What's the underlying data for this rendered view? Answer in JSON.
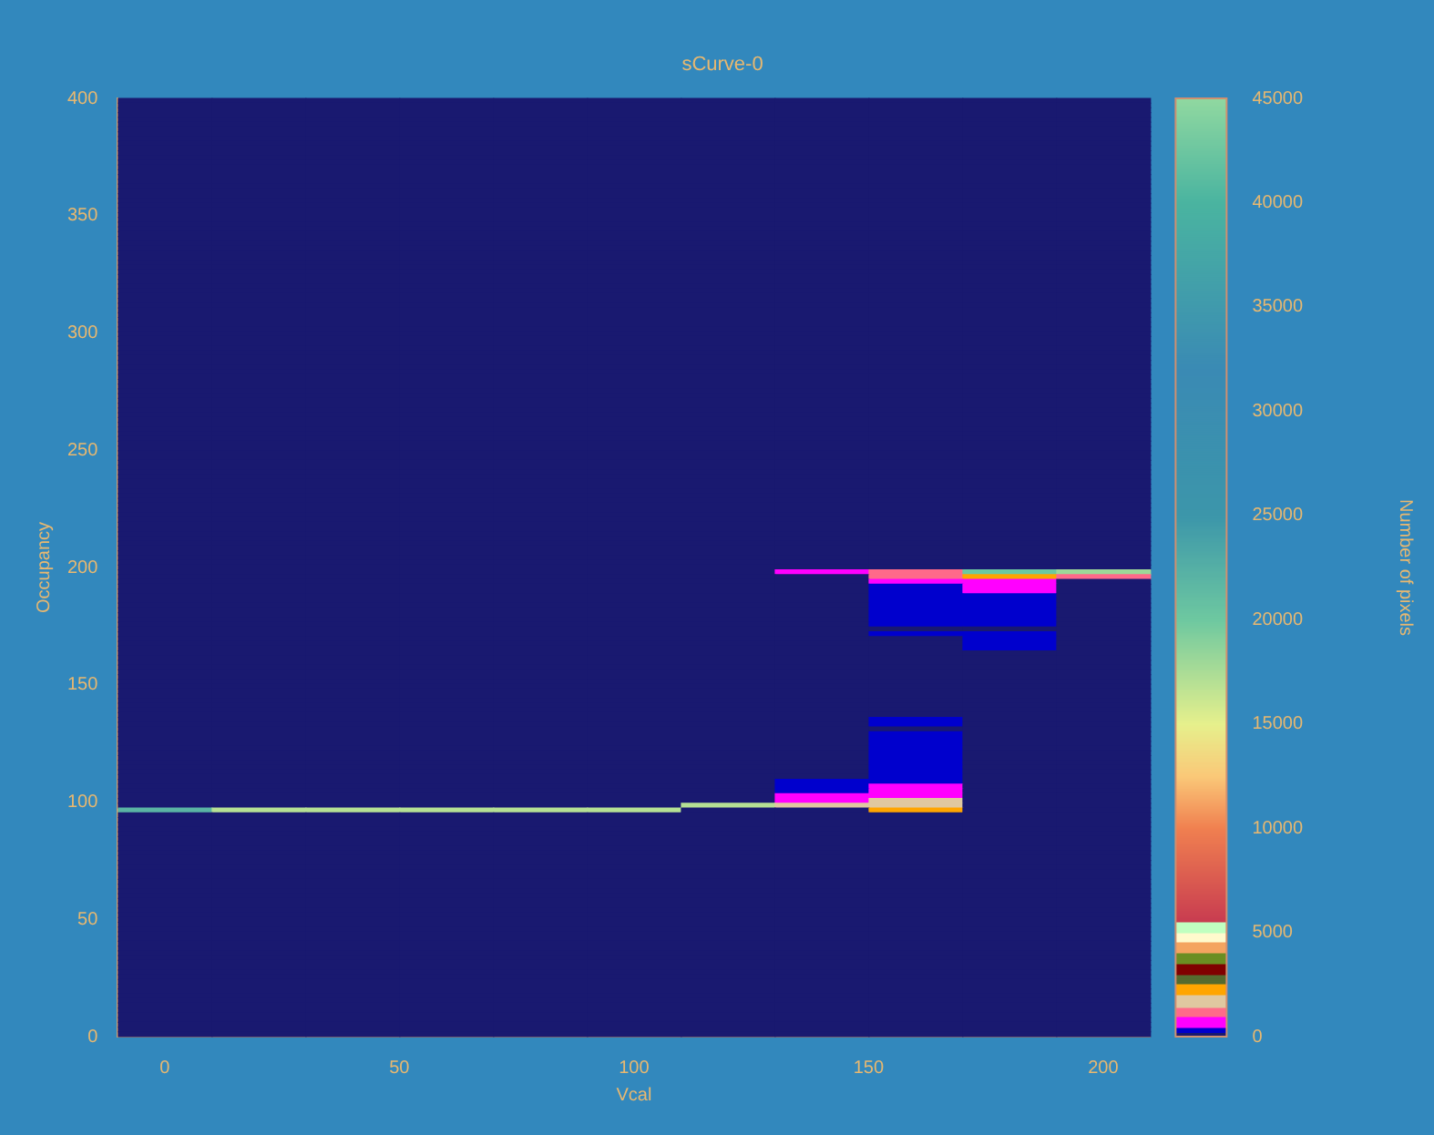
{
  "chart_data": {
    "type": "heatmap",
    "title": "sCurve-0",
    "xlabel": "Vcal",
    "ylabel": "Occupancy",
    "clabel": "Number of pixels",
    "xlim": [
      -10,
      210
    ],
    "xticks": [
      0,
      50,
      100,
      150,
      200
    ],
    "ylim": [
      0,
      400
    ],
    "yticks": [
      0,
      50,
      100,
      150,
      200,
      250,
      300,
      350,
      400
    ],
    "clim": [
      0,
      45000
    ],
    "cticks": [
      0,
      5000,
      10000,
      15000,
      20000,
      25000,
      30000,
      35000,
      40000,
      45000
    ],
    "grid": false,
    "cells": [
      [
        0,
        0,
        0,
        0,
        0,
        0,
        0,
        0,
        0,
        0,
        0
      ],
      [
        0,
        0,
        0,
        0,
        0,
        0,
        0,
        0,
        0,
        0,
        0
      ],
      [
        0,
        0,
        0,
        0,
        0,
        0,
        0,
        0,
        0,
        0,
        0
      ],
      [
        0,
        0,
        0,
        0,
        0,
        0,
        0,
        0,
        0,
        0,
        0
      ],
      [
        0,
        0,
        0,
        0,
        0,
        0,
        0,
        0,
        0,
        0,
        0
      ],
      [
        0,
        0,
        0,
        0,
        0,
        0,
        0,
        0,
        0,
        0,
        0
      ],
      [
        0,
        0,
        0,
        0,
        0,
        0,
        0,
        0,
        0,
        0,
        0
      ],
      [
        0,
        0,
        0,
        0,
        0,
        0,
        0,
        0,
        0,
        0,
        0
      ],
      [
        0,
        0,
        0,
        0,
        0,
        0,
        0,
        0,
        0,
        0,
        0
      ],
      [
        0,
        0,
        0,
        0,
        0,
        0,
        0,
        0,
        0,
        0,
        0
      ],
      [
        0,
        0,
        0,
        0,
        0,
        0,
        0,
        0,
        0,
        0,
        0
      ],
      [
        0,
        0,
        0,
        0,
        0,
        0,
        0,
        0,
        0,
        0,
        0
      ],
      [
        0,
        0,
        0,
        0,
        0,
        0,
        0,
        0,
        0,
        0,
        0
      ],
      [
        0,
        0,
        0,
        0,
        0,
        0,
        0,
        0,
        0,
        0,
        0
      ],
      [
        0,
        0,
        0,
        0,
        0,
        0,
        0,
        0,
        0,
        0,
        0
      ],
      [
        0,
        0,
        0,
        0,
        0,
        0,
        0,
        0,
        0,
        0,
        0
      ],
      [
        0,
        0,
        0,
        0,
        0,
        0,
        0,
        0,
        0,
        0,
        0
      ],
      [
        0,
        0,
        0,
        0,
        0,
        0,
        0,
        0,
        0,
        0,
        0
      ],
      [
        0,
        0,
        0,
        0,
        0,
        0,
        0,
        0,
        0,
        0,
        0
      ],
      [
        0,
        0,
        0,
        0,
        0,
        0,
        0,
        0,
        0,
        0,
        0
      ],
      [
        0,
        0,
        0,
        0,
        0,
        0,
        0,
        0,
        0,
        0,
        0
      ],
      [
        0,
        0,
        0,
        0,
        0,
        0,
        0,
        0,
        0,
        0,
        0
      ],
      [
        0,
        0,
        0,
        0,
        0,
        0,
        0,
        0,
        0,
        0,
        0
      ],
      [
        0,
        0,
        0,
        0,
        0,
        0,
        0,
        0,
        0,
        0,
        0
      ],
      [
        0,
        0,
        0,
        0,
        0,
        0,
        0,
        0,
        0,
        0,
        0
      ],
      [
        0,
        0,
        0,
        0,
        0,
        0,
        0,
        0,
        0,
        0,
        0
      ],
      [
        0,
        0,
        0,
        0,
        0,
        0,
        0,
        0,
        0,
        0,
        0
      ],
      [
        0,
        0,
        0,
        0,
        0,
        0,
        0,
        0,
        0,
        0,
        0
      ],
      [
        0,
        0,
        0,
        0,
        0,
        0,
        0,
        0,
        0,
        0,
        0
      ],
      [
        0,
        0,
        0,
        0,
        0,
        0,
        0,
        0,
        0,
        0,
        0
      ],
      [
        0,
        0,
        0,
        0,
        0,
        0,
        0,
        0,
        0,
        0,
        0
      ],
      [
        0,
        0,
        0,
        0,
        0,
        0,
        0,
        0,
        0,
        0,
        0
      ],
      [
        0,
        0,
        0,
        0,
        0,
        0,
        0,
        0,
        0,
        0,
        0
      ],
      [
        0,
        0,
        0,
        0,
        0,
        0,
        0,
        0,
        0,
        0,
        0
      ],
      [
        0,
        0,
        0,
        0,
        0,
        0,
        0,
        0,
        0,
        0,
        0
      ],
      [
        0,
        0,
        0,
        0,
        0,
        0,
        0,
        0,
        0,
        0,
        0
      ],
      [
        0,
        0,
        0,
        0,
        0,
        0,
        0,
        0,
        0,
        0,
        0
      ],
      [
        0,
        0,
        0,
        0,
        0,
        0,
        0,
        0,
        0,
        0,
        0
      ],
      [
        0,
        0,
        0,
        0,
        0,
        0,
        0,
        0,
        0,
        0,
        0
      ],
      [
        0,
        0,
        0,
        0,
        0,
        0,
        0,
        0,
        0,
        0,
        0
      ],
      [
        0,
        0,
        0,
        0,
        0,
        0,
        0,
        0,
        0,
        0,
        0
      ],
      [
        0,
        0,
        0,
        0,
        0,
        0,
        0,
        0,
        0,
        0,
        0
      ],
      [
        0,
        0,
        0,
        0,
        0,
        0,
        0,
        0,
        0,
        0,
        0
      ],
      [
        0,
        0,
        0,
        0,
        0,
        0,
        0,
        0,
        0,
        0,
        0
      ],
      [
        0,
        0,
        0,
        0,
        0,
        0,
        0,
        0,
        0,
        0,
        0
      ],
      [
        0,
        0,
        0,
        0,
        0,
        0,
        0,
        0,
        0,
        0,
        0
      ],
      [
        0,
        0,
        0,
        0,
        0,
        0,
        0,
        0,
        0,
        0,
        0
      ],
      [
        0,
        0,
        0,
        0,
        0,
        0,
        0,
        0,
        0,
        0,
        0
      ],
      [
        0,
        0,
        0,
        0,
        0,
        0,
        0,
        0,
        0,
        0,
        0
      ],
      [
        0,
        0,
        0,
        0,
        0,
        0,
        0,
        0,
        0,
        0,
        0
      ],
      [
        0,
        0,
        0,
        0,
        0,
        0,
        0,
        0,
        0,
        0,
        0
      ],
      [
        0,
        0,
        0,
        0,
        0,
        0,
        0,
        0,
        0,
        0,
        0
      ],
      [
        0,
        0,
        0,
        0,
        0,
        0,
        0,
        0,
        0,
        0,
        0
      ],
      [
        0,
        0,
        0,
        0,
        0,
        0,
        0,
        0,
        0,
        0,
        0
      ],
      [
        0,
        0,
        0,
        0,
        0,
        0,
        0,
        0,
        0,
        0,
        0
      ],
      [
        0,
        0,
        0,
        0,
        0,
        0,
        0,
        0,
        0,
        0,
        0
      ],
      [
        0,
        0,
        0,
        0,
        0,
        0,
        0,
        0,
        0,
        0,
        0
      ],
      [
        0,
        0,
        0,
        0,
        0,
        0,
        0,
        0,
        0,
        0,
        0
      ],
      [
        0,
        0,
        0,
        0,
        0,
        0,
        0,
        0,
        0,
        0,
        0
      ],
      [
        0,
        0,
        0,
        0,
        0,
        0,
        0,
        0,
        0,
        0,
        0
      ],
      [
        0,
        0,
        0,
        0,
        0,
        0,
        0,
        0,
        0,
        0,
        0
      ],
      [
        0,
        0,
        0,
        0,
        0,
        0,
        0,
        0,
        0,
        0,
        0
      ],
      [
        0,
        0,
        0,
        0,
        0,
        0,
        0,
        0,
        0,
        0,
        0
      ],
      [
        0,
        0,
        0,
        0,
        0,
        0,
        0,
        0,
        0,
        0,
        0
      ],
      [
        0,
        0,
        0,
        0,
        0,
        0,
        0,
        0,
        0,
        0,
        0
      ],
      [
        0,
        0,
        0,
        0,
        0,
        0,
        0,
        0,
        0,
        0,
        0
      ],
      [
        0,
        0,
        0,
        0,
        0,
        0,
        0,
        0,
        0,
        0,
        0
      ],
      [
        0,
        0,
        0,
        0,
        0,
        0,
        0,
        0,
        0,
        0,
        0
      ],
      [
        0,
        0,
        0,
        0,
        0,
        0,
        0,
        0,
        0,
        0,
        0
      ],
      [
        0,
        0,
        0,
        0,
        0,
        0,
        0,
        0,
        0,
        0,
        0
      ],
      [
        0,
        0,
        0,
        0,
        0,
        0,
        0,
        0,
        0,
        0,
        0
      ],
      [
        0,
        0,
        0,
        0,
        0,
        0,
        0,
        0,
        0,
        0,
        0
      ],
      [
        0,
        0,
        0,
        0,
        0,
        0,
        0,
        0,
        0,
        0,
        0
      ],
      [
        0,
        0,
        0,
        0,
        0,
        0,
        0,
        0,
        0,
        0,
        0
      ],
      [
        0,
        0,
        0,
        0,
        0,
        0,
        0,
        0,
        0,
        0,
        0
      ],
      [
        0,
        0,
        0,
        0,
        0,
        0,
        0,
        0,
        0,
        0,
        0
      ],
      [
        0,
        0,
        0,
        0,
        0,
        0,
        0,
        0,
        0,
        0,
        0
      ],
      [
        0,
        0,
        0,
        0,
        0,
        0,
        0,
        0,
        0,
        0,
        0
      ],
      [
        0,
        0,
        0,
        0,
        0,
        0,
        0,
        0,
        0,
        0,
        0
      ],
      [
        0,
        0,
        0,
        0,
        0,
        0,
        0,
        0,
        0,
        0,
        0
      ],
      [
        0,
        0,
        0,
        0,
        0,
        0,
        0,
        0,
        0,
        0,
        0
      ],
      [
        0,
        0,
        0,
        0,
        0,
        0,
        0,
        0,
        0,
        0,
        0
      ],
      [
        0,
        0,
        0,
        0,
        0,
        0,
        0,
        0,
        0,
        0,
        0
      ],
      [
        0,
        0,
        0,
        0,
        0,
        0,
        0,
        0,
        0,
        0,
        0
      ],
      [
        0,
        0,
        0,
        0,
        0,
        0,
        0,
        0,
        0,
        0,
        0
      ],
      [
        0,
        0,
        0,
        0,
        0,
        0,
        0,
        0,
        0,
        0,
        0
      ],
      [
        0,
        0,
        0,
        0,
        0,
        0,
        0,
        0,
        0,
        0,
        0
      ],
      [
        0,
        0,
        0,
        0,
        0,
        0,
        0,
        0,
        0,
        0,
        0
      ],
      [
        0,
        0,
        0,
        0,
        0,
        0,
        0,
        0,
        0,
        0,
        0
      ],
      [
        0,
        0,
        0,
        0,
        0,
        0,
        0,
        0,
        0,
        0,
        0
      ],
      [
        0,
        0,
        0,
        0,
        0,
        0,
        0,
        0,
        0,
        0,
        0
      ],
      [
        0,
        0,
        0,
        0,
        0,
        0,
        0,
        0,
        0,
        0,
        0
      ],
      [
        0,
        0,
        0,
        0,
        0,
        0,
        0,
        0,
        0,
        0,
        0
      ],
      [
        0,
        0,
        0,
        0,
        0,
        0,
        0,
        0,
        0,
        0,
        0
      ],
      [
        0,
        0,
        0,
        0,
        0,
        0,
        0,
        0,
        0,
        0,
        0
      ],
      [
        0,
        0,
        0,
        0,
        0,
        0,
        0,
        0,
        0,
        0,
        0
      ],
      [
        0,
        0,
        0,
        0,
        0,
        0,
        0,
        0,
        0,
        0,
        0
      ],
      [
        0,
        0,
        0,
        0,
        0,
        0,
        0,
        0,
        0,
        0,
        0
      ],
      [
        0,
        0,
        0,
        0,
        0,
        0,
        0,
        0,
        0,
        0,
        0
      ],
      [
        0,
        0,
        0,
        0,
        0,
        0,
        0,
        700,
        1200,
        20000,
        18000
      ],
      [
        0,
        0,
        0,
        0,
        0,
        0,
        0,
        0,
        1200,
        2200,
        1200
      ],
      [
        0,
        0,
        0,
        0,
        0,
        0,
        0,
        0,
        800,
        800,
        0
      ],
      [
        0,
        0,
        0,
        0,
        0,
        0,
        0,
        0,
        200,
        800,
        0
      ],
      [
        0,
        0,
        0,
        0,
        0,
        0,
        0,
        0,
        200,
        800,
        0
      ],
      [
        0,
        0,
        0,
        0,
        0,
        0,
        0,
        0,
        200,
        200,
        0
      ],
      [
        0,
        0,
        0,
        0,
        0,
        0,
        0,
        0,
        200,
        200,
        0
      ],
      [
        0,
        0,
        0,
        0,
        0,
        0,
        0,
        0,
        200,
        200,
        0
      ],
      [
        0,
        0,
        0,
        0,
        0,
        0,
        0,
        0,
        200,
        200,
        0
      ],
      [
        0,
        0,
        0,
        0,
        0,
        0,
        0,
        0,
        200,
        200,
        0
      ],
      [
        0,
        0,
        0,
        0,
        0,
        0,
        0,
        0,
        200,
        200,
        0
      ],
      [
        0,
        0,
        0,
        0,
        0,
        0,
        0,
        0,
        200,
        200,
        0
      ],
      [
        0,
        0,
        0,
        0,
        0,
        0,
        0,
        0,
        0,
        0,
        0
      ],
      [
        0,
        0,
        0,
        0,
        0,
        0,
        0,
        0,
        200,
        200,
        0
      ],
      [
        0,
        0,
        0,
        0,
        0,
        0,
        0,
        0,
        0,
        200,
        0
      ],
      [
        0,
        0,
        0,
        0,
        0,
        0,
        0,
        0,
        0,
        200,
        0
      ],
      [
        0,
        0,
        0,
        0,
        0,
        0,
        0,
        0,
        0,
        200,
        0
      ],
      [
        0,
        0,
        0,
        0,
        0,
        0,
        0,
        0,
        0,
        0,
        0
      ],
      [
        0,
        0,
        0,
        0,
        0,
        0,
        0,
        0,
        0,
        0,
        0
      ],
      [
        0,
        0,
        0,
        0,
        0,
        0,
        0,
        0,
        0,
        0,
        0
      ],
      [
        0,
        0,
        0,
        0,
        0,
        0,
        0,
        0,
        0,
        0,
        0
      ],
      [
        0,
        0,
        0,
        0,
        0,
        0,
        0,
        0,
        0,
        0,
        0
      ],
      [
        0,
        0,
        0,
        0,
        0,
        0,
        0,
        0,
        0,
        0,
        0
      ],
      [
        0,
        0,
        0,
        0,
        0,
        0,
        0,
        0,
        0,
        0,
        0
      ],
      [
        0,
        0,
        0,
        0,
        0,
        0,
        0,
        0,
        0,
        0,
        0
      ],
      [
        0,
        0,
        0,
        0,
        0,
        0,
        0,
        0,
        0,
        0,
        0
      ],
      [
        0,
        0,
        0,
        0,
        0,
        0,
        0,
        0,
        0,
        0,
        0
      ],
      [
        0,
        0,
        0,
        0,
        0,
        0,
        0,
        0,
        0,
        0,
        0
      ],
      [
        0,
        0,
        0,
        0,
        0,
        0,
        0,
        0,
        0,
        0,
        0
      ],
      [
        0,
        0,
        0,
        0,
        0,
        0,
        0,
        0,
        0,
        0,
        0
      ],
      [
        0,
        0,
        0,
        0,
        0,
        0,
        0,
        0,
        0,
        0,
        0
      ],
      [
        0,
        0,
        0,
        0,
        0,
        0,
        0,
        0,
        200,
        0,
        0
      ],
      [
        0,
        0,
        0,
        0,
        0,
        0,
        0,
        0,
        200,
        0,
        0
      ],
      [
        0,
        0,
        0,
        0,
        0,
        0,
        0,
        0,
        0,
        0,
        0
      ],
      [
        0,
        0,
        0,
        0,
        0,
        0,
        0,
        0,
        200,
        0,
        0
      ],
      [
        0,
        0,
        0,
        0,
        0,
        0,
        0,
        0,
        200,
        0,
        0
      ],
      [
        0,
        0,
        0,
        0,
        0,
        0,
        0,
        0,
        200,
        0,
        0
      ],
      [
        0,
        0,
        0,
        0,
        0,
        0,
        0,
        0,
        200,
        0,
        0
      ],
      [
        0,
        0,
        0,
        0,
        0,
        0,
        0,
        0,
        200,
        0,
        0
      ],
      [
        0,
        0,
        0,
        0,
        0,
        0,
        0,
        0,
        200,
        0,
        0
      ],
      [
        0,
        0,
        0,
        0,
        0,
        0,
        0,
        0,
        200,
        0,
        0
      ],
      [
        0,
        0,
        0,
        0,
        0,
        0,
        0,
        0,
        200,
        0,
        0
      ],
      [
        0,
        0,
        0,
        0,
        0,
        0,
        0,
        0,
        200,
        0,
        0
      ],
      [
        0,
        0,
        0,
        0,
        0,
        0,
        0,
        0,
        200,
        0,
        0
      ],
      [
        0,
        0,
        0,
        0,
        0,
        0,
        0,
        200,
        200,
        0,
        0
      ],
      [
        0,
        0,
        0,
        0,
        0,
        0,
        0,
        200,
        800,
        0,
        0
      ],
      [
        0,
        0,
        0,
        0,
        0,
        0,
        0,
        200,
        800,
        0,
        0
      ],
      [
        0,
        0,
        0,
        0,
        0,
        0,
        0,
        700,
        800,
        0,
        0
      ],
      [
        0,
        0,
        0,
        0,
        0,
        0,
        0,
        700,
        1500,
        0,
        0
      ],
      [
        0,
        0,
        0,
        0,
        0,
        0,
        17000,
        1500,
        1500,
        0,
        0
      ],
      [
        22000,
        17000,
        17000,
        17000,
        17000,
        17000,
        0,
        0,
        2200,
        0,
        0
      ],
      [
        0,
        0,
        0,
        0,
        0,
        0,
        0,
        0,
        0,
        0,
        0
      ],
      [
        0,
        0,
        0,
        0,
        0,
        0,
        0,
        0,
        0,
        0,
        0
      ],
      [
        0,
        0,
        0,
        0,
        0,
        0,
        0,
        0,
        0,
        0,
        0
      ],
      [
        0,
        0,
        0,
        0,
        0,
        0,
        0,
        0,
        0,
        0,
        0
      ],
      [
        0,
        0,
        0,
        0,
        0,
        0,
        0,
        0,
        0,
        0,
        0
      ],
      [
        0,
        0,
        0,
        0,
        0,
        0,
        0,
        0,
        0,
        0,
        0
      ],
      [
        0,
        0,
        0,
        0,
        0,
        0,
        0,
        0,
        0,
        0,
        0
      ],
      [
        0,
        0,
        0,
        0,
        0,
        0,
        0,
        0,
        0,
        0,
        0
      ],
      [
        0,
        0,
        0,
        0,
        0,
        0,
        0,
        0,
        0,
        0,
        0
      ],
      [
        0,
        0,
        0,
        0,
        0,
        0,
        0,
        0,
        0,
        0,
        0
      ],
      [
        0,
        0,
        0,
        0,
        0,
        0,
        0,
        0,
        0,
        0,
        0
      ],
      [
        0,
        0,
        0,
        0,
        0,
        0,
        0,
        0,
        0,
        0,
        0
      ],
      [
        0,
        0,
        0,
        0,
        0,
        0,
        0,
        0,
        0,
        0,
        0
      ],
      [
        0,
        0,
        0,
        0,
        0,
        0,
        0,
        0,
        0,
        0,
        0
      ],
      [
        0,
        0,
        0,
        0,
        0,
        0,
        0,
        0,
        0,
        0,
        0
      ],
      [
        0,
        0,
        0,
        0,
        0,
        0,
        0,
        0,
        0,
        0,
        0
      ],
      [
        0,
        0,
        0,
        0,
        0,
        0,
        0,
        0,
        0,
        0,
        0
      ],
      [
        0,
        0,
        0,
        0,
        0,
        0,
        0,
        0,
        0,
        0,
        0
      ],
      [
        0,
        0,
        0,
        0,
        0,
        0,
        0,
        0,
        0,
        0,
        0
      ],
      [
        0,
        0,
        0,
        0,
        0,
        0,
        0,
        0,
        0,
        0,
        0
      ],
      [
        0,
        0,
        0,
        0,
        0,
        0,
        0,
        0,
        0,
        0,
        0
      ],
      [
        0,
        0,
        0,
        0,
        0,
        0,
        0,
        0,
        0,
        0,
        0
      ],
      [
        0,
        0,
        0,
        0,
        0,
        0,
        0,
        0,
        0,
        0,
        0
      ],
      [
        0,
        0,
        0,
        0,
        0,
        0,
        0,
        0,
        0,
        0,
        0
      ],
      [
        0,
        0,
        0,
        0,
        0,
        0,
        0,
        0,
        0,
        0,
        0
      ],
      [
        0,
        0,
        0,
        0,
        0,
        0,
        0,
        0,
        0,
        0,
        0
      ],
      [
        0,
        0,
        0,
        0,
        0,
        0,
        0,
        0,
        0,
        0,
        0
      ],
      [
        0,
        0,
        0,
        0,
        0,
        0,
        0,
        0,
        0,
        0,
        0
      ],
      [
        0,
        0,
        0,
        0,
        0,
        0,
        0,
        0,
        0,
        0,
        0
      ],
      [
        0,
        0,
        0,
        0,
        0,
        0,
        0,
        0,
        0,
        0,
        0
      ],
      [
        0,
        0,
        0,
        0,
        0,
        0,
        0,
        0,
        0,
        0,
        0
      ],
      [
        0,
        0,
        0,
        0,
        0,
        0,
        0,
        0,
        0,
        0,
        0
      ],
      [
        0,
        0,
        0,
        0,
        0,
        0,
        0,
        0,
        0,
        0,
        0
      ],
      [
        0,
        0,
        0,
        0,
        0,
        0,
        0,
        0,
        0,
        0,
        0
      ],
      [
        0,
        0,
        0,
        0,
        0,
        0,
        0,
        0,
        0,
        0,
        0
      ],
      [
        0,
        0,
        0,
        0,
        0,
        0,
        0,
        0,
        0,
        0,
        0
      ],
      [
        0,
        0,
        0,
        0,
        0,
        0,
        0,
        0,
        0,
        0,
        0
      ],
      [
        0,
        0,
        0,
        0,
        0,
        0,
        0,
        0,
        0,
        0,
        0
      ],
      [
        0,
        0,
        0,
        0,
        0,
        0,
        0,
        0,
        0,
        0,
        0
      ],
      [
        0,
        0,
        0,
        0,
        0,
        0,
        0,
        0,
        0,
        0,
        0
      ],
      [
        0,
        0,
        0,
        0,
        0,
        0,
        0,
        0,
        0,
        0,
        0
      ],
      [
        0,
        0,
        0,
        0,
        0,
        0,
        0,
        0,
        0,
        0,
        0
      ],
      [
        0,
        0,
        0,
        0,
        0,
        0,
        0,
        0,
        0,
        0,
        0
      ],
      [
        0,
        0,
        0,
        0,
        0,
        0,
        0,
        0,
        0,
        0,
        0
      ],
      [
        0,
        0,
        0,
        0,
        0,
        0,
        0,
        0,
        0,
        0,
        0
      ],
      [
        0,
        0,
        0,
        0,
        0,
        0,
        0,
        0,
        0,
        0,
        0
      ],
      [
        0,
        0,
        0,
        0,
        0,
        0,
        0,
        0,
        0,
        0,
        0
      ]
    ]
  }
}
